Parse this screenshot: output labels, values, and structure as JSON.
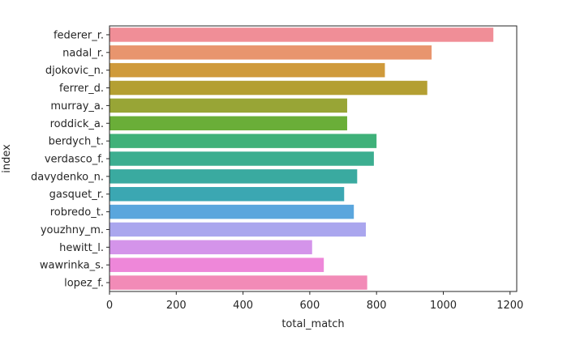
{
  "chart_data": {
    "type": "bar",
    "orientation": "horizontal",
    "xlabel": "total_match",
    "ylabel": "index",
    "xlim": [
      0,
      1220
    ],
    "xticks": [
      0,
      200,
      400,
      600,
      800,
      1000,
      1200
    ],
    "grid": false,
    "categories": [
      "federer_r.",
      "nadal_r.",
      "djokovic_n.",
      "ferrer_d.",
      "murray_a.",
      "roddick_a.",
      "berdych_t.",
      "verdasco_f.",
      "davydenko_n.",
      "gasquet_r.",
      "robredo_t.",
      "youzhny_m.",
      "hewitt_l.",
      "wawrinka_s.",
      "lopez_f."
    ],
    "values": [
      1150,
      965,
      825,
      952,
      712,
      712,
      800,
      792,
      742,
      703,
      732,
      768,
      607,
      642,
      772
    ],
    "colors": [
      "#f08e97",
      "#e8956e",
      "#cf9a3b",
      "#b49f32",
      "#98a536",
      "#6aae38",
      "#3fb179",
      "#3cae90",
      "#3aaaa0",
      "#3ba7b2",
      "#5aa6dd",
      "#aaa6ee",
      "#d494ea",
      "#ee87d9",
      "#f28bb7"
    ]
  }
}
